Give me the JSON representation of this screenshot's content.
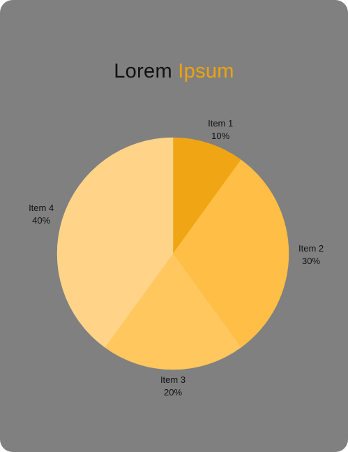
{
  "title": {
    "part1": "Lorem",
    "part2": "Ipsum"
  },
  "chart_data": {
    "type": "pie",
    "title": "Lorem Ipsum",
    "categories": [
      "Item 1",
      "Item 2",
      "Item 3",
      "Item 4"
    ],
    "values": [
      10,
      30,
      20,
      40
    ],
    "value_labels": [
      "10%",
      "30%",
      "20%",
      "40%"
    ],
    "colors": [
      "#f0a514",
      "#ffbe45",
      "#ffc75e",
      "#ffd488"
    ],
    "legend": "none"
  },
  "colors": {
    "background": "#808080",
    "title_primary": "#111111",
    "title_accent": "#f0a30a"
  }
}
